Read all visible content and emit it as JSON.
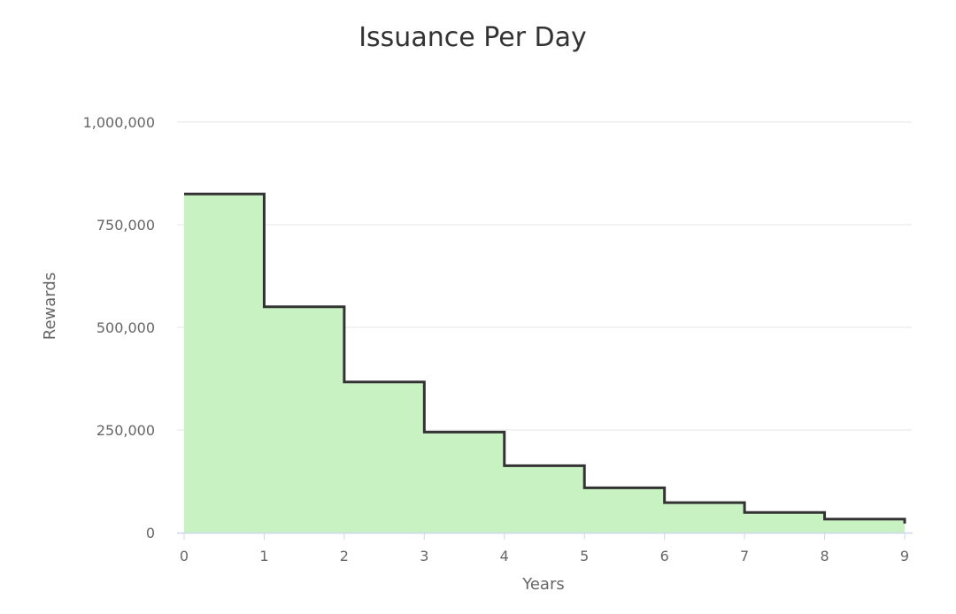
{
  "chart_data": {
    "type": "area",
    "step": true,
    "title": "Issuance Per Day",
    "xlabel": "Years",
    "ylabel": "Rewards",
    "x": [
      0,
      1,
      2,
      3,
      4,
      5,
      6,
      7,
      8,
      9
    ],
    "series": [
      {
        "values": [
          825000,
          550000,
          367000,
          245000,
          163000,
          109000,
          73000,
          49000,
          33000,
          22000
        ],
        "color": "#333333",
        "fill": "#c8f2c2"
      }
    ],
    "xlim": [
      0,
      9
    ],
    "ylim": [
      0,
      1000000
    ],
    "x_ticks": [
      "0",
      "1",
      "2",
      "3",
      "4",
      "5",
      "6",
      "7",
      "8",
      "9"
    ],
    "y_ticks": [
      "0",
      "250,000",
      "500,000",
      "750,000",
      "1,000,000"
    ],
    "y_tick_values": [
      0,
      250000,
      500000,
      750000,
      1000000
    ],
    "grid": true,
    "legend": "none"
  }
}
